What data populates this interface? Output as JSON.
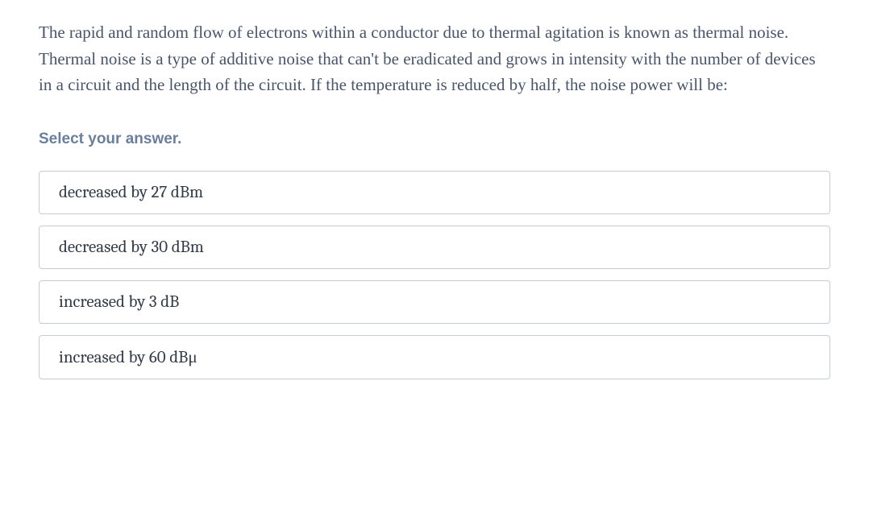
{
  "question_text": "The rapid and random flow of electrons within a conductor due to thermal agitation is known as thermal noise. Thermal noise is a type of additive noise that can't be eradicated and grows in intensity with the number of devices in a circuit and the length of the circuit. If the temperature is reduced by half, the noise power will be:",
  "prompt_text": "Select your answer.",
  "options": [
    "decreased by 27 dBm",
    "decreased by 30 dBm",
    "increased by 3 dB",
    "increased by 60 dBμ"
  ],
  "colors": {
    "question_text": "#4a5568",
    "prompt_text": "#6b7f99",
    "option_border": "#c5ccd6",
    "option_text": "#333b45",
    "background": "#ffffff"
  },
  "typography": {
    "question_fontsize": 21,
    "question_lineheight": 1.55,
    "prompt_fontsize": 19,
    "prompt_fontweight": 700,
    "option_fontsize": 21
  },
  "layout": {
    "option_gap": 14,
    "option_padding_v": 14,
    "option_padding_h": 24,
    "option_border_radius": 4
  }
}
